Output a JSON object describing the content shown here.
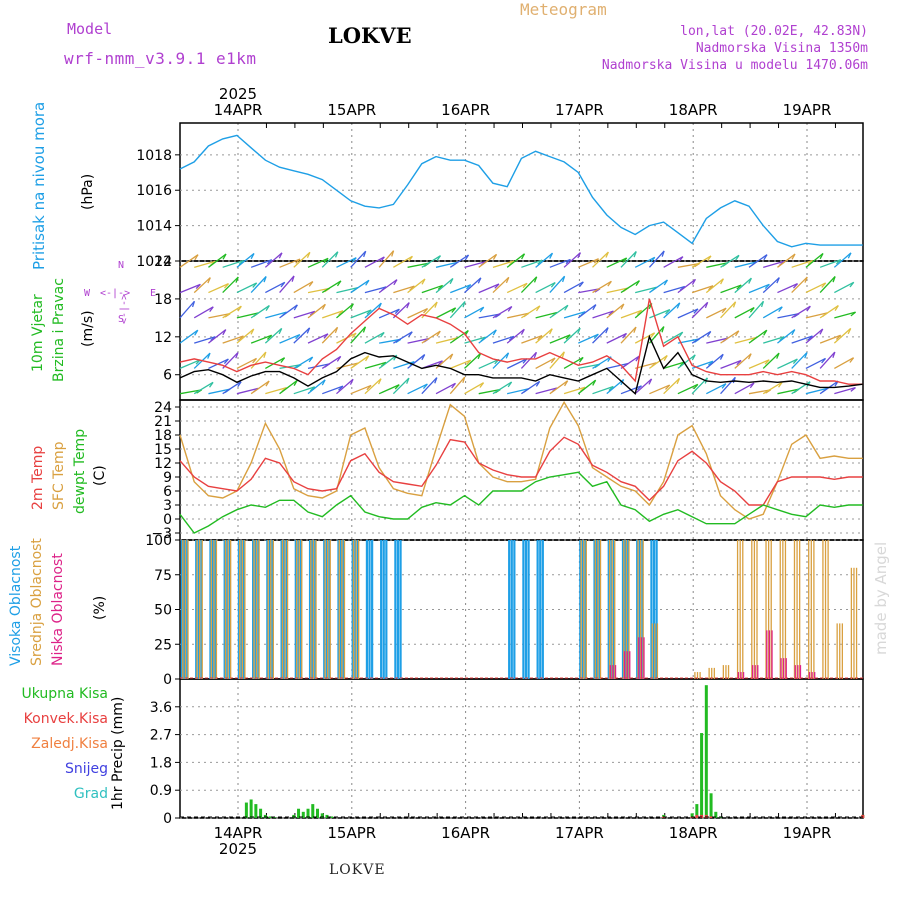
{
  "header": {
    "model_label": "Model",
    "model_name": "wrf-nmm_v3.9.1 e1km",
    "station": "LOKVE",
    "product": "Meteogram",
    "coords": "lon,lat (20.02E, 42.83N)",
    "elevation": "Nadmorska Visina 1350m",
    "model_elevation": "Nadmorska Visina u modelu 1470.06m"
  },
  "footer": {
    "station": "LOKVE",
    "credit": "made by Angel"
  },
  "colors": {
    "pressure": "#1e9fe6",
    "wind_label": "#22bb22",
    "wind_speed": "#000000",
    "gust": "#e84040",
    "temp2m": "#e84040",
    "sfc_temp": "#d9a040",
    "dewpt": "#22bb22",
    "cloud_high": "#1e9fe6",
    "cloud_mid": "#d9a040",
    "cloud_low": "#dd2288",
    "precip_total": "#22bb22",
    "precip_conv": "#e84040",
    "precip_frz": "#f08040",
    "snow": "#4040e0",
    "hail": "#30c0c0",
    "compass": "#b040d0"
  },
  "time_axis": {
    "year": "2025",
    "days": [
      "14APR",
      "15APR",
      "16APR",
      "17APR",
      "18APR",
      "19APR"
    ]
  },
  "compass_rose": {
    "north": "N",
    "east": "E",
    "south": "S",
    "west": "W",
    "arrow_n": "<-|->",
    "arrow_s": "<-|->"
  },
  "chart_data": [
    {
      "type": "line",
      "panel": "pressure",
      "ylabel_text": "Pritisak na nivou mora",
      "yunit": "(hPa)",
      "yticks": [
        "1018",
        "1016",
        "1014",
        "1012"
      ],
      "ylim": [
        1012,
        1019.8
      ],
      "x_hours": [
        0,
        3,
        6,
        9,
        12,
        15,
        18,
        21,
        24,
        27,
        30,
        33,
        36,
        39,
        42,
        45,
        48,
        51,
        54,
        57,
        60,
        63,
        66,
        69,
        72,
        75,
        78,
        81,
        84,
        87,
        90,
        93,
        96,
        99,
        102,
        105,
        108,
        111,
        114,
        117,
        120,
        123,
        126,
        129,
        132,
        135,
        138,
        141,
        144
      ],
      "series": [
        {
          "name": "pressure",
          "values": [
            1017.2,
            1017.6,
            1018.5,
            1018.9,
            1019.1,
            1018.4,
            1017.7,
            1017.3,
            1017.1,
            1016.9,
            1016.6,
            1016.0,
            1015.4,
            1015.1,
            1015.0,
            1015.2,
            1016.3,
            1017.5,
            1017.9,
            1017.7,
            1017.7,
            1017.4,
            1016.4,
            1016.2,
            1017.8,
            1018.2,
            1017.9,
            1017.6,
            1017.0,
            1015.6,
            1014.6,
            1013.9,
            1013.5,
            1014.0,
            1014.2,
            1013.6,
            1013.0,
            1014.4,
            1015.0,
            1015.4,
            1015.1,
            1014.0,
            1013.1,
            1012.8,
            1013.0,
            1012.9,
            1012.9,
            1012.9,
            1012.9
          ]
        }
      ]
    },
    {
      "type": "line",
      "panel": "wind",
      "ylabel_text": "10m Vjetar",
      "ylabel_text2": "Brzina i Pravac",
      "yunit": "(m/s)",
      "yticks": [
        "24",
        "18",
        "12",
        "6"
      ],
      "ylim": [
        2,
        24
      ],
      "x_hours": [
        0,
        3,
        6,
        9,
        12,
        15,
        18,
        21,
        24,
        27,
        30,
        33,
        36,
        39,
        42,
        45,
        48,
        51,
        54,
        57,
        60,
        63,
        66,
        69,
        72,
        75,
        78,
        81,
        84,
        87,
        90,
        93,
        96,
        99,
        102,
        105,
        108,
        111,
        114,
        117,
        120,
        123,
        126,
        129,
        132,
        135,
        138,
        141,
        144
      ],
      "series": [
        {
          "name": "wind_speed",
          "values": [
            5.5,
            6.5,
            6.8,
            6.0,
            4.8,
            5.8,
            6.5,
            6.5,
            5.5,
            4.2,
            5.5,
            6.5,
            8.5,
            9.5,
            8.8,
            9.0,
            8.0,
            7.0,
            7.5,
            7.0,
            6.0,
            6.0,
            5.5,
            5.5,
            5.5,
            5.0,
            6.0,
            5.5,
            5.0,
            6.0,
            7.0,
            5.0,
            3.0,
            12.0,
            7.0,
            9.5,
            6.0,
            5.0,
            4.8,
            5.0,
            4.8,
            5.0,
            4.8,
            5.0,
            4.5,
            4.0,
            4.0,
            4.2,
            4.5
          ]
        },
        {
          "name": "gust",
          "values": [
            8.0,
            8.5,
            8.0,
            7.5,
            6.5,
            7.5,
            8.0,
            7.5,
            7.0,
            6.0,
            8.5,
            10.0,
            12.5,
            14.5,
            16.5,
            15.5,
            14.0,
            15.5,
            15.0,
            14.0,
            12.5,
            9.5,
            8.5,
            8.0,
            8.5,
            8.5,
            9.5,
            8.5,
            7.5,
            8.0,
            9.0,
            7.5,
            5.0,
            18.0,
            10.5,
            12.0,
            7.5,
            6.5,
            6.0,
            6.0,
            6.0,
            6.5,
            6.0,
            6.5,
            6.0,
            5.0,
            5.0,
            4.5,
            4.5
          ]
        }
      ]
    },
    {
      "type": "line",
      "panel": "temperature",
      "ylabel_text": "2m Temp",
      "ylabel_text2": "SFC Temp",
      "ylabel_text3": "dewpt Temp",
      "yunit": "(C)",
      "yticks": [
        "24",
        "21",
        "18",
        "15",
        "12",
        "9",
        "6",
        "3",
        "0",
        "−3"
      ],
      "ylim": [
        -4.5,
        25.5
      ],
      "x_hours": [
        0,
        3,
        6,
        9,
        12,
        15,
        18,
        21,
        24,
        27,
        30,
        33,
        36,
        39,
        42,
        45,
        48,
        51,
        54,
        57,
        60,
        63,
        66,
        69,
        72,
        75,
        78,
        81,
        84,
        87,
        90,
        93,
        96,
        99,
        102,
        105,
        108,
        111,
        114,
        117,
        120,
        123,
        126,
        129,
        132,
        135,
        138,
        141,
        144
      ],
      "series": [
        {
          "name": "temp_2m",
          "values": [
            12.5,
            9.0,
            7.0,
            6.5,
            6.0,
            8.5,
            13.0,
            12.0,
            8.0,
            6.5,
            6.0,
            6.5,
            12.5,
            14.0,
            10.0,
            8.0,
            7.5,
            7.0,
            11.5,
            17.0,
            16.5,
            12.0,
            10.5,
            9.5,
            9.0,
            9.0,
            14.5,
            17.5,
            16.0,
            11.5,
            10.0,
            8.0,
            7.0,
            4.0,
            7.0,
            12.5,
            14.5,
            12.0,
            8.0,
            6.0,
            3.0,
            3.0,
            8.0,
            9.0,
            9.0,
            9.0,
            8.5,
            9.0,
            9.0
          ]
        },
        {
          "name": "sfc_temp",
          "values": [
            18.0,
            8.0,
            5.0,
            4.5,
            6.0,
            12.0,
            20.5,
            15.0,
            6.5,
            5.0,
            4.5,
            6.0,
            18.0,
            19.5,
            11.0,
            6.5,
            5.5,
            5.0,
            15.0,
            24.5,
            22.0,
            12.0,
            9.0,
            8.0,
            8.0,
            8.5,
            19.5,
            25.0,
            20.0,
            11.0,
            9.0,
            7.0,
            6.0,
            3.0,
            8.0,
            18.0,
            20.0,
            14.0,
            5.0,
            2.0,
            0.0,
            1.0,
            8.0,
            16.0,
            18.0,
            13.0,
            13.5,
            13.0,
            13.0
          ]
        },
        {
          "name": "dewpt",
          "values": [
            1.0,
            -3.0,
            -1.5,
            0.5,
            2.0,
            3.0,
            2.5,
            4.0,
            4.0,
            1.5,
            0.5,
            3.0,
            5.0,
            1.5,
            0.5,
            0.0,
            0.0,
            2.5,
            3.5,
            3.0,
            5.0,
            3.0,
            6.0,
            6.0,
            6.0,
            8.0,
            9.0,
            9.5,
            10.0,
            7.0,
            8.0,
            3.0,
            2.0,
            -0.5,
            1.0,
            2.0,
            0.5,
            -1.0,
            -1.0,
            -1.0,
            1.0,
            3.0,
            2.0,
            1.0,
            0.5,
            3.0,
            2.5,
            3.0,
            3.0
          ]
        }
      ]
    },
    {
      "type": "bar",
      "panel": "clouds",
      "ylabel_text": "Visoka Oblacnost",
      "ylabel_text2": "Srednja Oblacnost",
      "ylabel_text3": "Niska Oblacnost",
      "yunit": "(%)",
      "yticks": [
        "100",
        "75",
        "50",
        "25",
        "0"
      ],
      "ylim": [
        0,
        100
      ],
      "x_hours": [
        0,
        3,
        6,
        9,
        12,
        15,
        18,
        21,
        24,
        27,
        30,
        33,
        36,
        39,
        42,
        45,
        48,
        51,
        54,
        57,
        60,
        63,
        66,
        69,
        72,
        75,
        78,
        81,
        84,
        87,
        90,
        93,
        96,
        99,
        102,
        105,
        108,
        111,
        114,
        117,
        120,
        123,
        126,
        129,
        132,
        135,
        138,
        141,
        144
      ],
      "series": [
        {
          "name": "high_cloud",
          "values": [
            100,
            100,
            100,
            100,
            100,
            100,
            100,
            100,
            100,
            100,
            100,
            100,
            100,
            100,
            100,
            100,
            0,
            0,
            0,
            0,
            0,
            0,
            0,
            100,
            100,
            100,
            0,
            0,
            100,
            100,
            100,
            100,
            100,
            100,
            0,
            0,
            0,
            0,
            0,
            0,
            0,
            0,
            0,
            0,
            0,
            0,
            0,
            0,
            0
          ]
        },
        {
          "name": "mid_cloud",
          "values": [
            100,
            100,
            100,
            100,
            100,
            100,
            100,
            100,
            100,
            100,
            100,
            100,
            100,
            0,
            0,
            0,
            0,
            0,
            0,
            0,
            0,
            0,
            0,
            0,
            0,
            0,
            0,
            0,
            100,
            100,
            100,
            100,
            100,
            40,
            0,
            0,
            5,
            8,
            10,
            100,
            100,
            100,
            100,
            100,
            100,
            100,
            40,
            80,
            0
          ]
        },
        {
          "name": "low_cloud",
          "values": [
            0,
            0,
            0,
            0,
            0,
            0,
            0,
            0,
            0,
            0,
            0,
            0,
            0,
            0,
            0,
            0,
            0,
            0,
            0,
            0,
            0,
            0,
            0,
            0,
            0,
            0,
            0,
            0,
            0,
            0,
            10,
            20,
            30,
            0,
            0,
            0,
            0,
            0,
            0,
            5,
            10,
            35,
            15,
            10,
            5,
            0,
            0,
            0,
            0
          ]
        }
      ]
    },
    {
      "type": "bar",
      "panel": "precipitation",
      "legend": [
        "Ukupna Kisa",
        "Konvek.Kisa",
        "Zaledj.Kisa",
        "Snijeg",
        "Grad"
      ],
      "yunit": "1hr Precip (mm)",
      "yticks": [
        "3.6",
        "2.7",
        "1.8",
        "0.9",
        "0"
      ],
      "ylim": [
        0,
        4.5
      ],
      "x_hours": [
        14,
        15,
        16,
        17,
        18,
        19,
        20,
        24,
        25,
        26,
        27,
        28,
        29,
        30,
        31,
        32,
        102,
        108,
        109,
        110,
        111,
        112,
        113,
        114,
        144
      ],
      "series": [
        {
          "name": "total_precip",
          "values": [
            0.5,
            0.6,
            0.45,
            0.3,
            0.1,
            0.05,
            0.02,
            0.1,
            0.3,
            0.2,
            0.3,
            0.45,
            0.3,
            0.15,
            0.1,
            0.05,
            0.1,
            0.15,
            0.45,
            2.75,
            4.3,
            0.8,
            0.2,
            0.05,
            0.1
          ]
        },
        {
          "name": "conv_precip",
          "values": [
            0,
            0,
            0,
            0,
            0,
            0,
            0,
            0,
            0,
            0,
            0,
            0,
            0,
            0,
            0,
            0,
            0.05,
            0.05,
            0.1,
            0.1,
            0.1,
            0.05,
            0,
            0,
            0.1
          ]
        }
      ]
    }
  ]
}
